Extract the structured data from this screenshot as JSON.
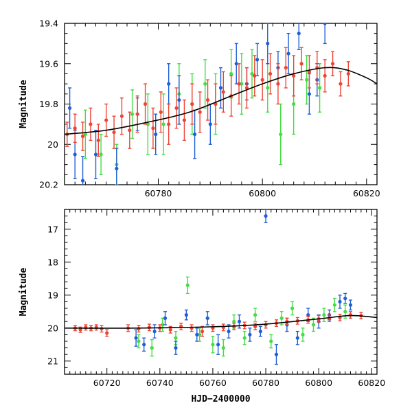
{
  "chart_data": [
    {
      "type": "scatter",
      "panel": "top",
      "title": "",
      "xlabel": "",
      "ylabel": "Magnitude",
      "xlim": [
        60762,
        60822
      ],
      "ylim": [
        20.2,
        19.4
      ],
      "y_inverted": true,
      "x_ticks": [
        60780,
        60800,
        60820
      ],
      "y_ticks": [
        19.4,
        19.6,
        19.8,
        20,
        20.2
      ],
      "x_tick_labels": [
        "60780",
        "60800",
        "60820"
      ],
      "y_tick_labels": [
        "19.4",
        "19.6",
        "19.8",
        "20",
        "20.2"
      ],
      "legend": "none",
      "grid": false,
      "colors": {
        "blue": "#1f5fd6",
        "green": "#44dd44",
        "red": "#ee4433",
        "model": "#000000"
      },
      "model_curve": {
        "x": [
          60762,
          60770,
          60778,
          60786,
          60794,
          60800,
          60806,
          60812,
          60816,
          60820,
          60822
        ],
        "y": [
          19.95,
          19.93,
          19.89,
          19.84,
          19.76,
          19.7,
          19.65,
          19.62,
          19.63,
          19.67,
          19.7
        ]
      },
      "series": [
        {
          "color": "blue",
          "x": [
            60763.0,
            60764.0,
            60765.5,
            60768.0,
            60772.0,
            60776.0,
            60779.5,
            60782.0,
            60784.0,
            60787.0,
            60790.0,
            60792.0,
            60795.0,
            60797.0,
            60799.0,
            60801.0,
            60803.0,
            60805.0,
            60807.0,
            60809.0,
            60810.5,
            60812.0
          ],
          "y": [
            19.82,
            20.05,
            20.18,
            20.05,
            20.12,
            19.85,
            19.95,
            19.7,
            19.78,
            19.95,
            19.9,
            19.72,
            19.6,
            19.7,
            19.58,
            19.5,
            19.62,
            19.55,
            19.45,
            19.75,
            19.68,
            19.4
          ],
          "err": [
            0.1,
            0.12,
            0.12,
            0.12,
            0.1,
            0.08,
            0.1,
            0.1,
            0.12,
            0.12,
            0.1,
            0.1,
            0.1,
            0.08,
            0.08,
            0.1,
            0.08,
            0.1,
            0.08,
            0.1,
            0.08,
            0.1
          ]
        },
        {
          "color": "green",
          "x": [
            60766.0,
            60769.0,
            60772.0,
            60775.0,
            60778.0,
            60781.0,
            60784.0,
            60786.5,
            60789.0,
            60791.0,
            60794.0,
            60796.0,
            60798.0,
            60801.0,
            60803.5,
            60806.0,
            60808.5,
            60811.0
          ],
          "y": [
            19.95,
            20.05,
            20.1,
            19.85,
            19.9,
            19.9,
            19.75,
            19.8,
            19.7,
            19.8,
            19.65,
            19.7,
            19.65,
            19.72,
            19.95,
            19.8,
            19.68,
            19.72
          ],
          "err": [
            0.12,
            0.1,
            0.1,
            0.12,
            0.15,
            0.15,
            0.15,
            0.15,
            0.12,
            0.15,
            0.12,
            0.15,
            0.12,
            0.12,
            0.15,
            0.15,
            0.12,
            0.12
          ]
        },
        {
          "color": "red",
          "x": [
            60762.5,
            60764.0,
            60765.5,
            60767.0,
            60768.5,
            60770.0,
            60771.5,
            60773.0,
            60774.5,
            60776.0,
            60777.5,
            60779.0,
            60780.5,
            60782.0,
            60783.5,
            60785.0,
            60786.5,
            60788.0,
            60789.5,
            60791.0,
            60792.5,
            60794.0,
            60795.5,
            60797.0,
            60798.5,
            60800.0,
            60801.5,
            60803.0,
            60804.5,
            60806.0,
            60807.5,
            60809.0,
            60810.5,
            60812.0,
            60813.5,
            60815.0,
            60816.5
          ],
          "y": [
            19.95,
            19.92,
            19.96,
            19.9,
            19.98,
            19.88,
            19.94,
            19.86,
            19.93,
            19.85,
            19.8,
            19.92,
            19.84,
            19.9,
            19.82,
            19.88,
            19.8,
            19.84,
            19.78,
            19.8,
            19.74,
            19.76,
            19.7,
            19.72,
            19.66,
            19.68,
            19.65,
            19.7,
            19.62,
            19.66,
            19.6,
            19.64,
            19.62,
            19.66,
            19.6,
            19.7,
            19.65
          ],
          "err": [
            0.06,
            0.07,
            0.07,
            0.08,
            0.08,
            0.08,
            0.08,
            0.09,
            0.09,
            0.09,
            0.1,
            0.1,
            0.1,
            0.1,
            0.1,
            0.1,
            0.1,
            0.1,
            0.1,
            0.1,
            0.1,
            0.1,
            0.1,
            0.1,
            0.1,
            0.1,
            0.1,
            0.1,
            0.1,
            0.1,
            0.08,
            0.08,
            0.08,
            0.08,
            0.06,
            0.06,
            0.06
          ]
        }
      ]
    },
    {
      "type": "scatter",
      "panel": "bottom",
      "title": "",
      "xlabel": "HJD−2400000",
      "ylabel": "Magnitude",
      "xlim": [
        60704,
        60822
      ],
      "ylim": [
        21.4,
        16.4
      ],
      "y_inverted": true,
      "x_ticks": [
        60720,
        60740,
        60760,
        60780,
        60800,
        60820
      ],
      "y_ticks": [
        17,
        18,
        19,
        20,
        21
      ],
      "x_tick_labels": [
        "60720",
        "60740",
        "60760",
        "60780",
        "60800",
        "60820"
      ],
      "y_tick_labels": [
        "17",
        "18",
        "19",
        "20",
        "21"
      ],
      "legend": "none",
      "grid": false,
      "colors": {
        "blue": "#1f5fd6",
        "green": "#44dd44",
        "red": "#ee4433",
        "model": "#000000"
      },
      "model_curve": {
        "x": [
          60704,
          60730,
          60760,
          60780,
          60800,
          60812,
          60822
        ],
        "y": [
          20.0,
          20.0,
          19.96,
          19.88,
          19.72,
          19.62,
          19.68
        ]
      },
      "series": [
        {
          "color": "blue",
          "x": [
            60731.0,
            60734.0,
            60738.0,
            60742.0,
            60746.0,
            60750.0,
            60754.0,
            60758.0,
            60762.0,
            60766.0,
            60770.0,
            60774.0,
            60778.0,
            60780.0,
            60784.0,
            60788.0,
            60792.0,
            60796.0,
            60800.0,
            60804.0,
            60808.0,
            60810.0,
            60812.0
          ],
          "y": [
            20.3,
            20.5,
            20.1,
            19.7,
            20.6,
            19.6,
            20.2,
            19.7,
            20.5,
            20.1,
            19.8,
            20.2,
            20.1,
            16.6,
            20.8,
            19.9,
            20.3,
            19.6,
            19.8,
            19.6,
            19.2,
            19.1,
            19.3
          ],
          "err": [
            0.25,
            0.2,
            0.2,
            0.2,
            0.2,
            0.15,
            0.2,
            0.2,
            0.3,
            0.2,
            0.2,
            0.2,
            0.15,
            0.2,
            0.3,
            0.2,
            0.2,
            0.2,
            0.2,
            0.15,
            0.2,
            0.15,
            0.15
          ]
        },
        {
          "color": "green",
          "x": [
            60732.0,
            60737.0,
            60741.0,
            60746.0,
            60750.5,
            60755.0,
            60760.0,
            60764.0,
            60768.0,
            60772.0,
            60776.0,
            60782.0,
            60786.0,
            60790.0,
            60794.0,
            60798.0,
            60802.0,
            60806.0,
            60810.0
          ],
          "y": [
            20.4,
            20.6,
            19.9,
            20.3,
            18.7,
            20.2,
            20.5,
            20.6,
            19.8,
            20.3,
            19.6,
            20.4,
            19.7,
            19.4,
            20.2,
            19.9,
            19.6,
            19.3,
            19.5
          ],
          "err": [
            0.2,
            0.25,
            0.2,
            0.2,
            0.25,
            0.2,
            0.25,
            0.25,
            0.2,
            0.2,
            0.2,
            0.2,
            0.2,
            0.2,
            0.2,
            0.2,
            0.2,
            0.2,
            0.2
          ]
        },
        {
          "color": "red",
          "x": [
            60708.0,
            60710.0,
            60712.0,
            60714.0,
            60716.0,
            60718.0,
            60720.0,
            60728.0,
            60732.0,
            60736.0,
            60740.0,
            60744.0,
            60748.0,
            60752.0,
            60756.0,
            60760.0,
            60764.0,
            60768.0,
            60772.0,
            60776.0,
            60780.0,
            60784.0,
            60788.0,
            60792.0,
            60796.0,
            60800.0,
            60804.0,
            60808.0,
            60812.0,
            60816.0
          ],
          "y": [
            20.0,
            20.05,
            19.98,
            20.0,
            19.98,
            20.02,
            20.15,
            20.0,
            20.02,
            19.98,
            20.0,
            20.05,
            19.95,
            20.0,
            20.1,
            20.0,
            19.98,
            19.95,
            19.92,
            19.95,
            19.9,
            19.85,
            19.8,
            19.78,
            19.75,
            19.72,
            19.7,
            19.68,
            19.6,
            19.62
          ],
          "err": [
            0.08,
            0.08,
            0.08,
            0.08,
            0.08,
            0.1,
            0.1,
            0.1,
            0.1,
            0.1,
            0.1,
            0.1,
            0.1,
            0.1,
            0.15,
            0.1,
            0.1,
            0.1,
            0.1,
            0.1,
            0.1,
            0.1,
            0.1,
            0.1,
            0.1,
            0.1,
            0.1,
            0.1,
            0.1,
            0.1
          ]
        }
      ]
    }
  ]
}
